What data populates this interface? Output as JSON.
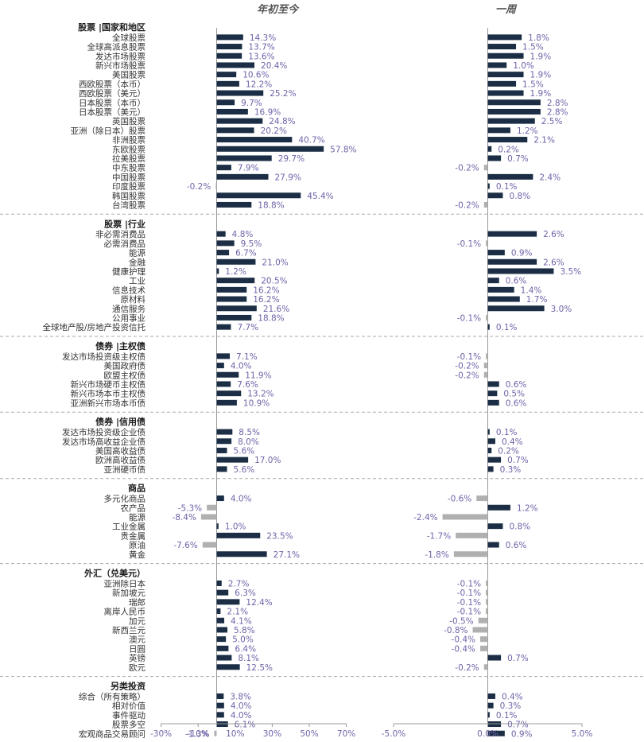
{
  "chart_data": {
    "type": "bar",
    "orientation": "horizontal",
    "panels": [
      {
        "title": "年初至今",
        "xlim": [
          -30,
          70
        ],
        "ticks": [
          "-30%",
          "-10%",
          "10%",
          "30%",
          "50%",
          "70%"
        ],
        "tick_values": [
          -30,
          -10,
          10,
          30,
          50,
          70
        ]
      },
      {
        "title": "一周",
        "xlim": [
          -5,
          5
        ],
        "ticks": [
          "-5.0%",
          "0.0%",
          "5.0%"
        ],
        "tick_values": [
          -5,
          0,
          5
        ]
      }
    ],
    "colors": {
      "positive": "#1c2e45",
      "negative": "#b0b0b0",
      "value_text": "#6f63a8",
      "zero_line": "#999999",
      "separator": "#aaaaaa"
    },
    "groups": [
      {
        "header": "股票 |国家和地区",
        "items": [
          {
            "label": "全球股票",
            "ytd": 14.3,
            "ytd_text": "14.3%",
            "wk": 1.8,
            "wk_text": "1.8%"
          },
          {
            "label": "全球高派息股票",
            "ytd": 13.7,
            "ytd_text": "13.7%",
            "wk": 1.5,
            "wk_text": "1.5%"
          },
          {
            "label": "发达市场股票",
            "ytd": 13.6,
            "ytd_text": "13.6%",
            "wk": 1.9,
            "wk_text": "1.9%"
          },
          {
            "label": "新兴市场股票",
            "ytd": 20.4,
            "ytd_text": "20.4%",
            "wk": 1.0,
            "wk_text": "1.0%"
          },
          {
            "label": "美国股票",
            "ytd": 10.6,
            "ytd_text": "10.6%",
            "wk": 1.9,
            "wk_text": "1.9%"
          },
          {
            "label": "西欧股票（本币）",
            "ytd": 12.2,
            "ytd_text": "12.2%",
            "wk": 1.5,
            "wk_text": "1.5%"
          },
          {
            "label": "西欧股票（美元）",
            "ytd": 25.2,
            "ytd_text": "25.2%",
            "wk": 1.9,
            "wk_text": "1.9%"
          },
          {
            "label": "日本股票（本币）",
            "ytd": 9.7,
            "ytd_text": "9.7%",
            "wk": 2.8,
            "wk_text": "2.8%"
          },
          {
            "label": "日本股票（美元）",
            "ytd": 16.9,
            "ytd_text": "16.9%",
            "wk": 2.8,
            "wk_text": "2.8%"
          },
          {
            "label": "英国股票",
            "ytd": 24.8,
            "ytd_text": "24.8%",
            "wk": 2.5,
            "wk_text": "2.5%"
          },
          {
            "label": "亚洲（除日本）股票",
            "ytd": 20.2,
            "ytd_text": "20.2%",
            "wk": 1.2,
            "wk_text": "1.2%"
          },
          {
            "label": "非洲股票",
            "ytd": 40.7,
            "ytd_text": "40.7%",
            "wk": 2.1,
            "wk_text": "2.1%"
          },
          {
            "label": "东欧股票",
            "ytd": 57.8,
            "ytd_text": "57.8%",
            "wk": 0.2,
            "wk_text": "0.2%"
          },
          {
            "label": "拉美股票",
            "ytd": 29.7,
            "ytd_text": "29.7%",
            "wk": 0.7,
            "wk_text": "0.7%"
          },
          {
            "label": "中东股票",
            "ytd": 7.9,
            "ytd_text": "7.9%",
            "wk": -0.2,
            "wk_text": "-0.2%"
          },
          {
            "label": "中国股票",
            "ytd": 27.9,
            "ytd_text": "27.9%",
            "wk": 2.4,
            "wk_text": "2.4%"
          },
          {
            "label": "印度股票",
            "ytd": -0.2,
            "ytd_text": "-0.2%",
            "wk": 0.1,
            "wk_text": "0.1%"
          },
          {
            "label": "韩国股票",
            "ytd": 45.4,
            "ytd_text": "45.4%",
            "wk": 0.8,
            "wk_text": "0.8%"
          },
          {
            "label": "台湾股票",
            "ytd": 18.8,
            "ytd_text": "18.8%",
            "wk": -0.2,
            "wk_text": "-0.2%"
          }
        ]
      },
      {
        "header": "股票 |行业",
        "items": [
          {
            "label": "非必需消费品",
            "ytd": 4.8,
            "ytd_text": "4.8%",
            "wk": 2.6,
            "wk_text": "2.6%"
          },
          {
            "label": "必需消费品",
            "ytd": 9.5,
            "ytd_text": "9.5%",
            "wk": -0.1,
            "wk_text": "-0.1%"
          },
          {
            "label": "能源",
            "ytd": 6.7,
            "ytd_text": "6.7%",
            "wk": 0.9,
            "wk_text": "0.9%"
          },
          {
            "label": "金融",
            "ytd": 21.0,
            "ytd_text": "21.0%",
            "wk": 2.6,
            "wk_text": "2.6%"
          },
          {
            "label": "健康护理",
            "ytd": 1.2,
            "ytd_text": "1.2%",
            "wk": 3.5,
            "wk_text": "3.5%"
          },
          {
            "label": "工业",
            "ytd": 20.5,
            "ytd_text": "20.5%",
            "wk": 0.6,
            "wk_text": "0.6%"
          },
          {
            "label": "信息技术",
            "ytd": 16.2,
            "ytd_text": "16.2%",
            "wk": 1.4,
            "wk_text": "1.4%"
          },
          {
            "label": "原材料",
            "ytd": 16.2,
            "ytd_text": "16.2%",
            "wk": 1.7,
            "wk_text": "1.7%"
          },
          {
            "label": "通信服务",
            "ytd": 21.6,
            "ytd_text": "21.6%",
            "wk": 3.0,
            "wk_text": "3.0%"
          },
          {
            "label": "公用事业",
            "ytd": 18.8,
            "ytd_text": "18.8%",
            "wk": -0.1,
            "wk_text": "-0.1%"
          },
          {
            "label": "全球地产股/房地产投资信托",
            "ytd": 7.7,
            "ytd_text": "7.7%",
            "wk": 0.1,
            "wk_text": "0.1%"
          }
        ]
      },
      {
        "header": "债券 |主权债",
        "items": [
          {
            "label": "发达市场投资级主权债",
            "ytd": 7.1,
            "ytd_text": "7.1%",
            "wk": -0.1,
            "wk_text": "-0.1%"
          },
          {
            "label": "美国政府债",
            "ytd": 4.0,
            "ytd_text": "4.0%",
            "wk": -0.2,
            "wk_text": "-0.2%"
          },
          {
            "label": "欧盟主权债",
            "ytd": 11.9,
            "ytd_text": "11.9%",
            "wk": -0.2,
            "wk_text": "-0.2%"
          },
          {
            "label": "新兴市场硬币主权债",
            "ytd": 7.6,
            "ytd_text": "7.6%",
            "wk": 0.6,
            "wk_text": "0.6%"
          },
          {
            "label": "新兴市场本币主权债",
            "ytd": 13.2,
            "ytd_text": "13.2%",
            "wk": 0.5,
            "wk_text": "0.5%"
          },
          {
            "label": "亚洲新兴市场本币债",
            "ytd": 10.9,
            "ytd_text": "10.9%",
            "wk": 0.6,
            "wk_text": "0.6%"
          }
        ]
      },
      {
        "header": "债券 |信用债",
        "items": [
          {
            "label": "发达市场投资级企业债",
            "ytd": 8.5,
            "ytd_text": "8.5%",
            "wk": 0.1,
            "wk_text": "0.1%"
          },
          {
            "label": "发达市场高收益企业债",
            "ytd": 8.0,
            "ytd_text": "8.0%",
            "wk": 0.4,
            "wk_text": "0.4%"
          },
          {
            "label": "美国高收益债",
            "ytd": 5.6,
            "ytd_text": "5.6%",
            "wk": 0.2,
            "wk_text": "0.2%"
          },
          {
            "label": "欧洲高收益债",
            "ytd": 17.0,
            "ytd_text": "17.0%",
            "wk": 0.7,
            "wk_text": "0.7%"
          },
          {
            "label": "亚洲硬币债",
            "ytd": 5.6,
            "ytd_text": "5.6%",
            "wk": 0.3,
            "wk_text": "0.3%"
          }
        ]
      },
      {
        "header": "商品",
        "items": [
          {
            "label": "多元化商品",
            "ytd": 4.0,
            "ytd_text": "4.0%",
            "wk": -0.6,
            "wk_text": "-0.6%"
          },
          {
            "label": "农产品",
            "ytd": -5.3,
            "ytd_text": "-5.3%",
            "wk": 1.2,
            "wk_text": "1.2%"
          },
          {
            "label": "能源",
            "ytd": -8.4,
            "ytd_text": "-8.4%",
            "wk": -2.4,
            "wk_text": "-2.4%"
          },
          {
            "label": "工业金属",
            "ytd": 1.0,
            "ytd_text": "1.0%",
            "wk": 0.8,
            "wk_text": "0.8%"
          },
          {
            "label": "贵金属",
            "ytd": 23.5,
            "ytd_text": "23.5%",
            "wk": -1.7,
            "wk_text": "-1.7%"
          },
          {
            "label": "原油",
            "ytd": -7.6,
            "ytd_text": "-7.6%",
            "wk": 0.6,
            "wk_text": "0.6%"
          },
          {
            "label": "黄金",
            "ytd": 27.1,
            "ytd_text": "27.1%",
            "wk": -1.8,
            "wk_text": "-1.8%"
          }
        ]
      },
      {
        "header": "外汇（兑美元）",
        "items": [
          {
            "label": "亚洲除日本",
            "ytd": 2.7,
            "ytd_text": "2.7%",
            "wk": -0.1,
            "wk_text": "-0.1%"
          },
          {
            "label": "新加坡元",
            "ytd": 6.3,
            "ytd_text": "6.3%",
            "wk": -0.1,
            "wk_text": "-0.1%"
          },
          {
            "label": "瑞郎",
            "ytd": 12.4,
            "ytd_text": "12.4%",
            "wk": -0.1,
            "wk_text": "-0.1%"
          },
          {
            "label": "离岸人民币",
            "ytd": 2.1,
            "ytd_text": "2.1%",
            "wk": -0.1,
            "wk_text": "-0.1%"
          },
          {
            "label": "加元",
            "ytd": 4.1,
            "ytd_text": "4.1%",
            "wk": -0.5,
            "wk_text": "-0.5%"
          },
          {
            "label": "新西兰元",
            "ytd": 5.8,
            "ytd_text": "5.8%",
            "wk": -0.8,
            "wk_text": "-0.8%"
          },
          {
            "label": "澳元",
            "ytd": 5.0,
            "ytd_text": "5.0%",
            "wk": -0.4,
            "wk_text": "-0.4%"
          },
          {
            "label": "日圆",
            "ytd": 6.4,
            "ytd_text": "6.4%",
            "wk": -0.4,
            "wk_text": "-0.4%"
          },
          {
            "label": "英镑",
            "ytd": 8.1,
            "ytd_text": "8.1%",
            "wk": 0.7,
            "wk_text": "0.7%"
          },
          {
            "label": "欧元",
            "ytd": 12.5,
            "ytd_text": "12.5%",
            "wk": -0.2,
            "wk_text": "-0.2%"
          }
        ]
      },
      {
        "header": "另类投资",
        "items": [
          {
            "label": "综合（所有策略）",
            "ytd": 3.8,
            "ytd_text": "3.8%",
            "wk": 0.4,
            "wk_text": "0.4%"
          },
          {
            "label": "相对价值",
            "ytd": 4.0,
            "ytd_text": "4.0%",
            "wk": 0.3,
            "wk_text": "0.3%"
          },
          {
            "label": "事件驱动",
            "ytd": 4.0,
            "ytd_text": "4.0%",
            "wk": 0.1,
            "wk_text": "0.1%"
          },
          {
            "label": "股票多空",
            "ytd": 6.1,
            "ytd_text": "6.1%",
            "wk": 0.7,
            "wk_text": "0.7%"
          },
          {
            "label": "宏观商品交易顾问",
            "ytd": -1.3,
            "ytd_text": "-1.3%",
            "wk": 0.9,
            "wk_text": "0.9%"
          }
        ]
      }
    ]
  }
}
